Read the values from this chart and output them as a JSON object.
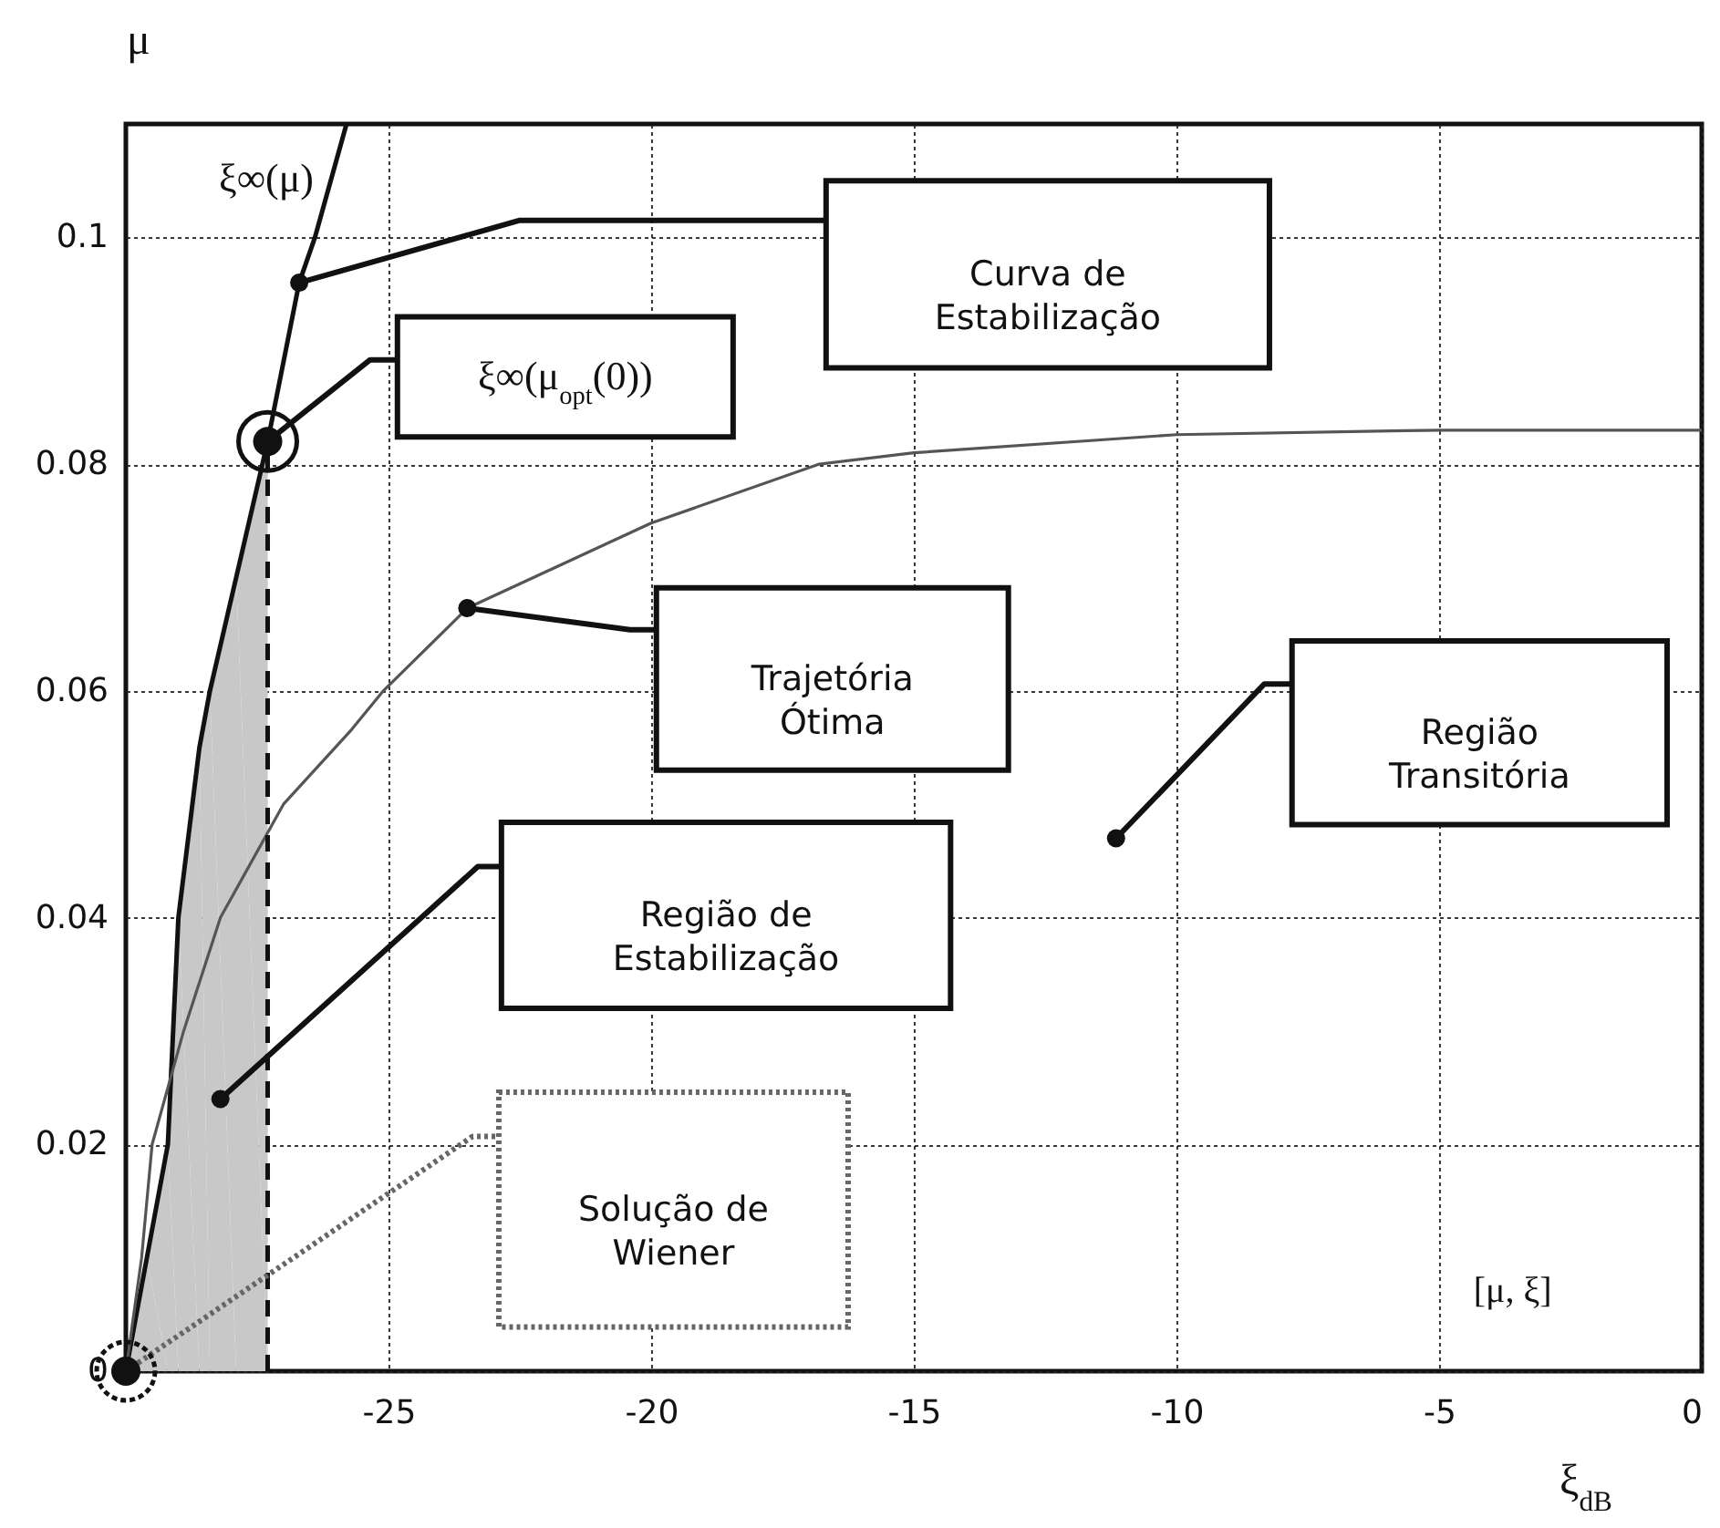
{
  "chart_data": {
    "type": "line",
    "xlabel": "ξ$_{dB}$",
    "ylabel": "μ",
    "xlim": [
      -30,
      0
    ],
    "ylim": [
      0,
      0.11
    ],
    "xticks": [
      -25,
      -20,
      -15,
      -10,
      -5,
      0
    ],
    "yticks": [
      0,
      0.02,
      0.04,
      0.06,
      0.08,
      0.1
    ],
    "grid": true,
    "series": [
      {
        "type": "area",
        "color": "#c8c8c8",
        "x": [
          -30,
          -29.6,
          -29.2,
          -29.0,
          -28.6,
          -28.4,
          -27.9,
          -27.3
        ],
        "values": [
          0,
          0.01,
          0.02,
          0.04,
          0.055,
          0.06,
          0.07,
          0.082
        ]
      },
      {
        "name": "ξ∞(μ)",
        "color": "#111111",
        "x": [
          -30,
          -29.6,
          -29.2,
          -29.0,
          -28.6,
          -28.4,
          -27.9,
          -27.3,
          -26.7,
          -26.4,
          -25.8
        ],
        "values": [
          0,
          0.01,
          0.02,
          0.04,
          0.055,
          0.06,
          0.07,
          0.082,
          0.096,
          0.1,
          0.11
        ]
      },
      {
        "color": "#555555",
        "x": [
          -30,
          -29.7,
          -29.5,
          -28.9,
          -28.2,
          -27.0,
          -25.7,
          -25.1,
          -23.5,
          -20.0,
          -16.8,
          -15,
          -10,
          -5,
          0
        ],
        "values": [
          0,
          0.01,
          0.02,
          0.03,
          0.04,
          0.05,
          0.0566,
          0.06,
          0.0673,
          0.0748,
          0.08,
          0.081,
          0.0826,
          0.083,
          0.083
        ]
      },
      {
        "color": "#111111",
        "line_style": "dashed",
        "x": [
          -27.3,
          -27.3
        ],
        "values": [
          0,
          0.082
        ]
      }
    ],
    "annotations": [
      "Curva de\nEstabilização",
      "ξ∞(μ$_{opt}$(0))",
      "Trajetória\nÓtima",
      "Região\nTransitória",
      "Região de\nEstabilização",
      "Solução de\nWiener",
      "[μ, ξ]"
    ]
  }
}
